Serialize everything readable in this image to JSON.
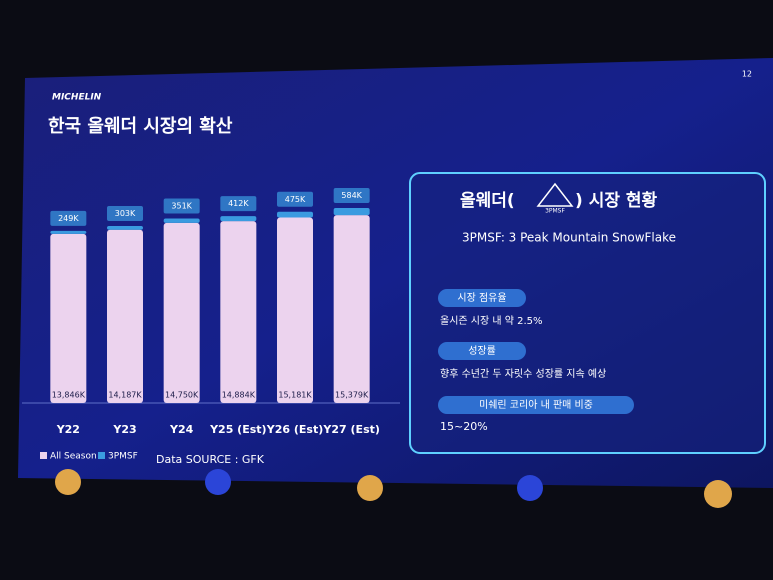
{
  "header": {
    "logo": "MICHELIN",
    "page": "12",
    "title": "한국 올웨더 시장의 확산"
  },
  "chart_data": {
    "type": "bar",
    "stacked": true,
    "categories": [
      "Y22",
      "Y23",
      "Y24",
      "Y25 (Est)",
      "Y26 (Est)",
      "Y27 (Est)"
    ],
    "series": [
      {
        "name": "All Season",
        "color": "#ecd3ee",
        "values": [
          13846,
          14187,
          14750,
          14884,
          15181,
          15379
        ],
        "value_labels": [
          "13,846K",
          "14,187K",
          "14,750K",
          "14,884K",
          "15,181K",
          "15,379K"
        ]
      },
      {
        "name": "3PMSF",
        "color": "#3a9be0",
        "values": [
          249,
          303,
          351,
          412,
          475,
          584
        ],
        "value_labels": [
          "249K",
          "303K",
          "351K",
          "412K",
          "475K",
          "584K"
        ]
      }
    ],
    "source": "Data SOURCE : GFK"
  },
  "panel": {
    "title_left": "올웨더(",
    "icon_label": "3PMSF",
    "title_right": ") 시장 현황",
    "subtitle": "3PMSF:  3 Peak Mountain SnowFlake",
    "items": [
      {
        "label": "시장 점유율",
        "text": "올시즌 시장 내 약 2.5%"
      },
      {
        "label": "성장률",
        "text": "향후 수년간 두 자릿수 성장률 지속 예상"
      },
      {
        "label": "미쉐린 코리아 내 판매 비중",
        "text": "15~20%"
      }
    ]
  }
}
